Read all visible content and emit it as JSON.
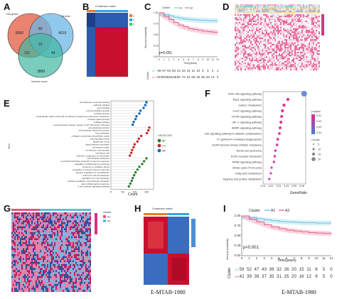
{
  "panels": {
    "A": {
      "label": "A",
      "sets": [
        {
          "name": "DM-genes",
          "color": "#e05a4a"
        },
        {
          "name": "Stromal",
          "color": "#4aa3df"
        },
        {
          "name": "Immune score",
          "color": "#2bb39a"
        }
      ],
      "counts": {
        "a_only": "8000",
        "b_only": "4019",
        "c_only": "3889",
        "ab": "83",
        "ac": "121",
        "bc": "44",
        "abc": "31"
      }
    },
    "B": {
      "label": "B",
      "title": "Consensus matrix",
      "legend": [
        "1",
        "2",
        "3"
      ]
    },
    "C": {
      "label": "C",
      "legend_title": "Cluster",
      "legend_items": [
        "A1",
        "A2"
      ],
      "ylabel": "Survival probability",
      "xlabel": "Time(years)",
      "pvalue": "p=0.001",
      "xticks": [
        "0",
        "1",
        "2",
        "3",
        "4",
        "5",
        "6",
        "7",
        "8",
        "9",
        "10",
        "11",
        "12"
      ],
      "yticks": [
        "0.00",
        "0.25",
        "0.50",
        "0.75",
        "1.00"
      ],
      "risk_title": "Cluster",
      "risk_rows": [
        {
          "name": "A1",
          "values": [
            "69",
            "67",
            "64",
            "53",
            "24",
            "18",
            "15",
            "11",
            "10",
            "6",
            "3",
            "2",
            "1"
          ]
        },
        {
          "name": "A2",
          "values": [
            "207",
            "200",
            "181",
            "148",
            "90",
            "72",
            "61",
            "55",
            "45",
            "35",
            "26",
            "14",
            "2"
          ]
        }
      ]
    },
    "D": {
      "label": "D"
    },
    "E": {
      "label": "E",
      "ylabel": "Term",
      "xlabel": "Count",
      "ontology_title": "ONTOLOGY",
      "ontology": [
        {
          "name": "BP",
          "color": "#2e7d32"
        },
        {
          "name": "CC",
          "color": "#c62828"
        },
        {
          "name": "MF",
          "color": "#1565c0"
        }
      ],
      "xticks": [
        "0",
        "50",
        "100",
        "150"
      ],
      "terms": [
        "cell adhesion molecule binding",
        "cadherin binding",
        "actin binding",
        "enzyme inhibitor activity",
        "GTPase activity",
        "extracellular matrix structural constituent conferring compression resistance",
        "receptor ligand activity",
        "collagen binding",
        "oxidoreductase activity, acting on CH-OH group of donors",
        "cell-substrate junction",
        "cell-substrate adherens junction",
        "focal adhesion",
        "collagen-containing extracellular matrix",
        "mitochondrial matrix",
        "apical part of cell",
        "basal plasma membrane",
        "membrane region",
        "membrane microdomain",
        "membrane raft",
        "extrinsic component of membrane",
        "cell-substrate adhesion",
        "neutrophil activation involved in immune response",
        "regulation of inflammatory response",
        "response to oxidative stress",
        "regulation of innate immune response",
        "positive regulation of cell adhesion",
        "leukocyte cell-cell adhesion",
        "regulation of T cell activation",
        "positive regulation of lymphocyte activation",
        "acute inflammatory response",
        "T cell receptor signaling pathway"
      ]
    },
    "F": {
      "label": "F",
      "xlabel": "GeneRatio",
      "xticks": [
        "0.01",
        "0.02",
        "0.03",
        "0.04",
        "0.05",
        "0.06"
      ],
      "padj_title": "p.adjust",
      "padj_ticks": [
        "0.01",
        "0.02",
        "0.03",
        "0.04"
      ],
      "count_title": "Counts",
      "count_ticks": [
        "5",
        "10",
        "15",
        "20"
      ],
      "pathways": [
        {
          "name": "PI3K−Akt signaling pathway",
          "ratio": 0.063
        },
        {
          "name": "Rap1 signaling pathway",
          "ratio": 0.042
        },
        {
          "name": "Carbon metabolism",
          "ratio": 0.037
        },
        {
          "name": "FoxO signaling pathway",
          "ratio": 0.035
        },
        {
          "name": "mTOR signaling pathway",
          "ratio": 0.034
        },
        {
          "name": "HIF−1 signaling pathway",
          "ratio": 0.033
        },
        {
          "name": "AMPK signaling pathway",
          "ratio": 0.032
        },
        {
          "name": "AGE−RAGE signaling pathway in diabetic complications",
          "ratio": 0.031
        },
        {
          "name": "Fc gamma R−mediated phagocytosis",
          "ratio": 0.029
        },
        {
          "name": "EGFR tyrosine kinase inhibitor resistance",
          "ratio": 0.028
        },
        {
          "name": "Renal cell carcinoma",
          "ratio": 0.026
        },
        {
          "name": "ECM−receptor interaction",
          "ratio": 0.025
        },
        {
          "name": "PPAR signaling pathway",
          "ratio": 0.024
        },
        {
          "name": "Citrate cycle (TCA cycle)",
          "ratio": 0.021
        },
        {
          "name": "Fatty acid metabolism",
          "ratio": 0.02
        },
        {
          "name": "Arginine and proline metabolism",
          "ratio": 0.018
        }
      ]
    },
    "G": {
      "label": "G",
      "legend_title": "Cluster",
      "legend_items": [
        "A1",
        "A2"
      ]
    },
    "H": {
      "label": "H",
      "title": "Consensus matrix",
      "caption": "E-MTAB-1980"
    },
    "I": {
      "label": "I",
      "legend_title": "Cluster",
      "legend_items": [
        "A1",
        "A2"
      ],
      "ylabel": "Survival probability",
      "xlabel": "Time(years)",
      "pvalue": "p<0.001",
      "xticks": [
        "0",
        "1",
        "2",
        "3",
        "4",
        "5",
        "6",
        "7",
        "8",
        "9",
        "10",
        "11",
        "12"
      ],
      "yticks": [
        "0.00",
        "0.25",
        "0.50",
        "0.75",
        "1.00"
      ],
      "risk_title": "Cluster",
      "risk_rows": [
        {
          "name": "A1",
          "values": [
            "59",
            "52",
            "47",
            "43",
            "39",
            "32",
            "26",
            "20",
            "15",
            "11",
            "8",
            "5",
            "0"
          ]
        },
        {
          "name": "A2",
          "values": [
            "42",
            "39",
            "39",
            "37",
            "35",
            "31",
            "25",
            "20",
            "16",
            "12",
            "9",
            "5",
            "0"
          ]
        }
      ],
      "caption": "E-MTAB-1980"
    }
  },
  "colors": {
    "red": "#c8102e",
    "blue": "#1f4e9c",
    "cyan": "#5bc0de",
    "pink": "#e75480",
    "magenta": "#d63384"
  }
}
